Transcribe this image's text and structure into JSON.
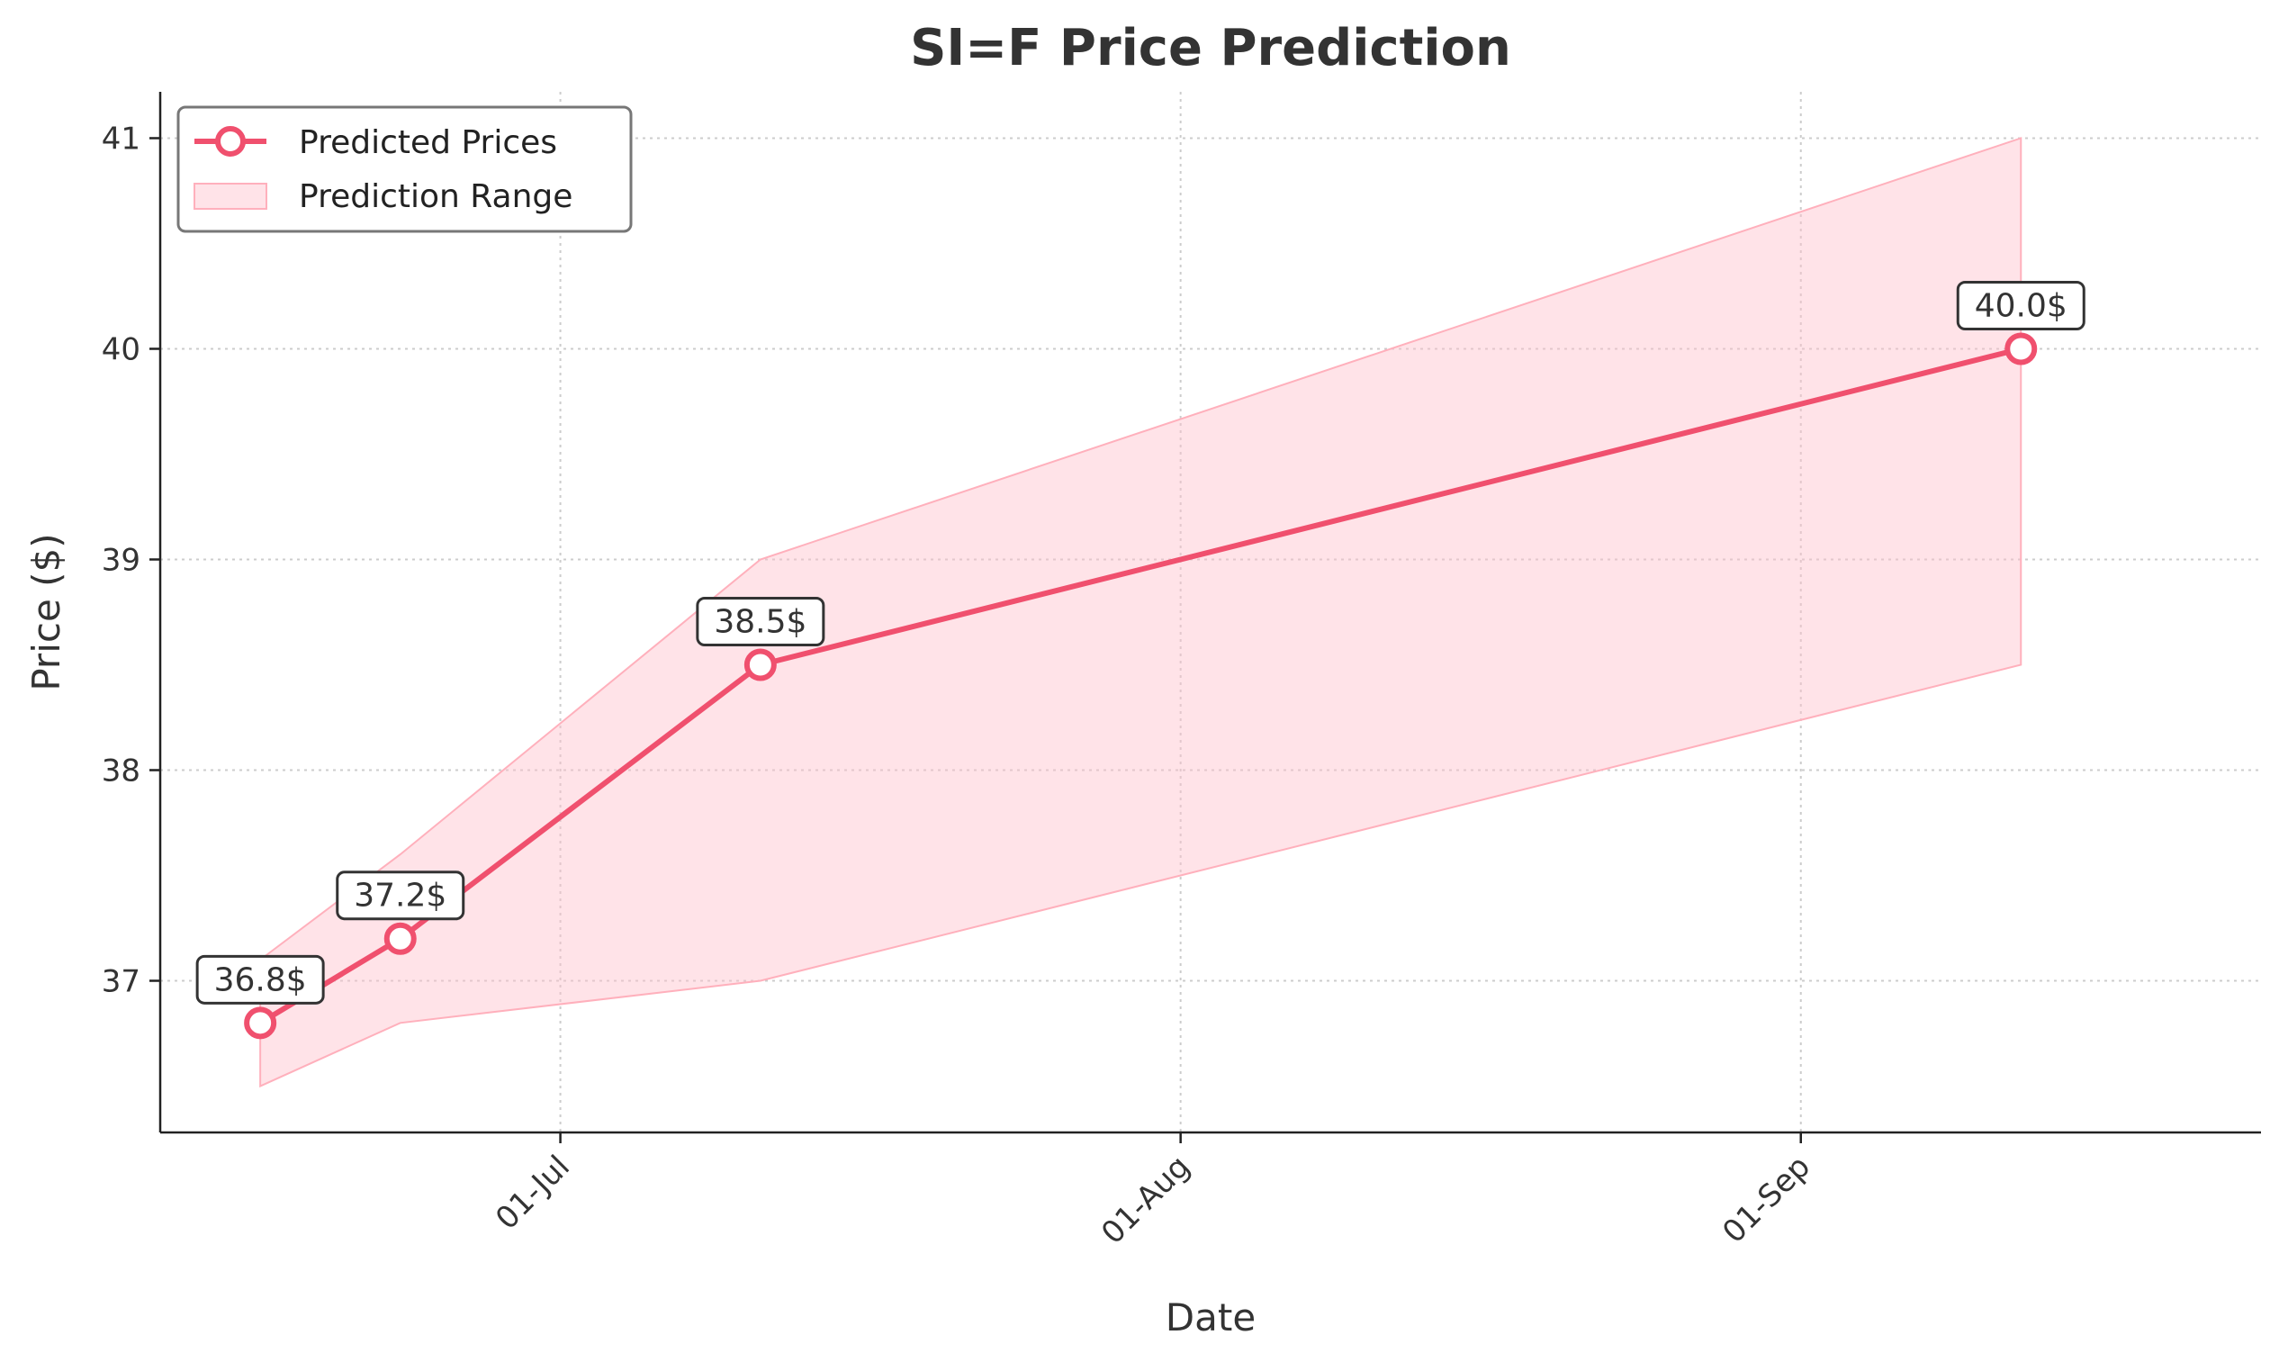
{
  "chart_data": {
    "type": "line",
    "title": "SI=F Price Prediction",
    "xlabel": "Date",
    "ylabel": "Price ($)",
    "x_ticks": [
      {
        "date": "2025-07-01",
        "label": "01-Jul"
      },
      {
        "date": "2025-08-01",
        "label": "01-Aug"
      },
      {
        "date": "2025-09-01",
        "label": "01-Sep"
      }
    ],
    "y_ticks": [
      37,
      38,
      39,
      40,
      41
    ],
    "xlim": [
      "2025-06-11",
      "2025-09-24"
    ],
    "ylim": [
      36.28,
      41.22
    ],
    "grid": true,
    "legend_position": "top-left",
    "series": [
      {
        "name": "Predicted Prices",
        "kind": "line",
        "color": "#f0506e",
        "points": [
          {
            "x": "2025-06-16",
            "y": 36.8,
            "label": "36.8$"
          },
          {
            "x": "2025-06-23",
            "y": 37.2,
            "label": "37.2$"
          },
          {
            "x": "2025-07-11",
            "y": 38.5,
            "label": "38.5$"
          },
          {
            "x": "2025-09-12",
            "y": 40.0,
            "label": "40.0$"
          }
        ]
      },
      {
        "name": "Prediction Range",
        "kind": "band",
        "color": "#ffc0cb",
        "points": [
          {
            "x": "2025-06-16",
            "low": 36.5,
            "high": 37.1
          },
          {
            "x": "2025-06-23",
            "low": 36.8,
            "high": 37.6
          },
          {
            "x": "2025-07-11",
            "low": 37.0,
            "high": 39.0
          },
          {
            "x": "2025-09-12",
            "low": 38.5,
            "high": 41.0
          }
        ]
      }
    ]
  }
}
